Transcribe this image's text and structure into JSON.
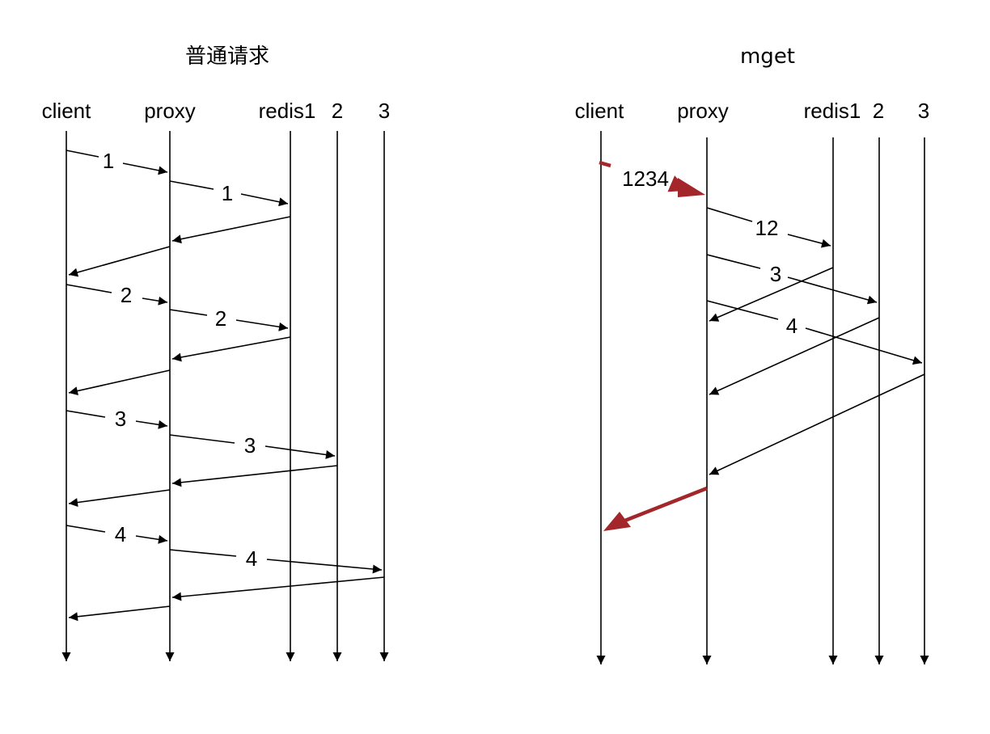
{
  "left_diagram": {
    "title": "普通请求",
    "participants": [
      "client",
      "proxy",
      "redis1",
      "2",
      "3"
    ],
    "messages": [
      {
        "label": "1"
      },
      {
        "label": "1"
      },
      {
        "label": "2"
      },
      {
        "label": "2"
      },
      {
        "label": "3"
      },
      {
        "label": "3"
      },
      {
        "label": "4"
      },
      {
        "label": "4"
      }
    ]
  },
  "right_diagram": {
    "title": "mget",
    "participants": [
      "client",
      "proxy",
      "redis1",
      "2",
      "3"
    ],
    "messages": [
      {
        "label": "1234"
      },
      {
        "label": "12"
      },
      {
        "label": "3"
      },
      {
        "label": "4"
      }
    ]
  },
  "colors": {
    "line": "#000000",
    "highlight": "#a3262a"
  }
}
